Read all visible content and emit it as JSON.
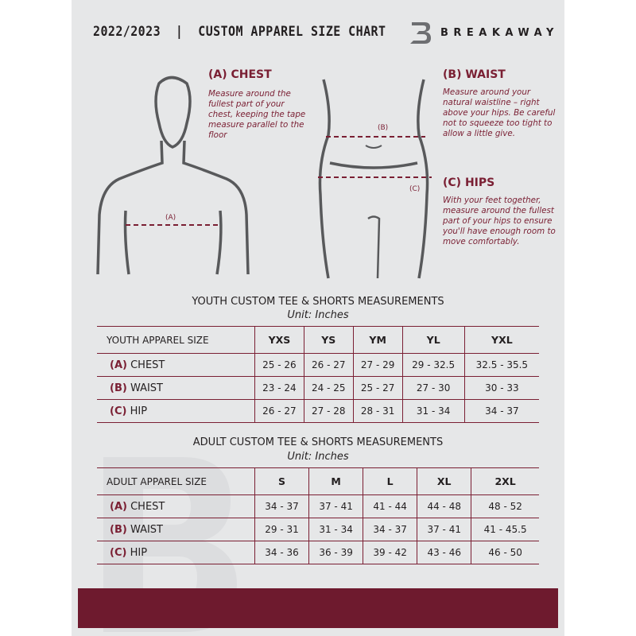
{
  "header": {
    "title": "2022/2023  |  CUSTOM APPAREL SIZE CHART",
    "brand": "BREAKAWAY",
    "logo_letter": "B"
  },
  "colors": {
    "accent": "#7a1f33",
    "background": "#e6e7e8",
    "footer": "#6e1a2e"
  },
  "diagram": {
    "chest_marker": "(A)",
    "waist_marker": "(B)",
    "hips_marker": "(C)"
  },
  "instructions": [
    {
      "heading": "(A) CHEST",
      "text": "Measure around the fullest part of your chest, keeping the tape measure parallel to the floor"
    },
    {
      "heading": "(B) WAIST",
      "text": "Measure around your natural waistline – right above your hips. Be careful not to squeeze too tight to allow a little give."
    },
    {
      "heading": "(C) HIPS",
      "text": "With your feet together, measure around the fullest part of your hips to ensure you'll have enough room to move comfortably."
    }
  ],
  "youth": {
    "title": "YOUTH CUSTOM TEE & SHORTS MEASUREMENTS",
    "unit": "Unit: Inches",
    "size_label": "YOUTH APPAREL SIZE",
    "sizes": [
      "YXS",
      "YS",
      "YM",
      "YL",
      "YXL"
    ],
    "rows": [
      {
        "code": "(A)",
        "name": "CHEST",
        "values": [
          "25 - 26",
          "26 - 27",
          "27 - 29",
          "29 - 32.5",
          "32.5 - 35.5"
        ]
      },
      {
        "code": "(B)",
        "name": "WAIST",
        "values": [
          "23 - 24",
          "24 - 25",
          "25 - 27",
          "27 - 30",
          "30 - 33"
        ]
      },
      {
        "code": "(C)",
        "name": "HIP",
        "values": [
          "26 - 27",
          "27 - 28",
          "28 - 31",
          "31 - 34",
          "34 - 37"
        ]
      }
    ]
  },
  "adult": {
    "title": "ADULT CUSTOM TEE & SHORTS MEASUREMENTS",
    "unit": "Unit: Inches",
    "size_label": "ADULT APPAREL SIZE",
    "sizes": [
      "S",
      "M",
      "L",
      "XL",
      "2XL"
    ],
    "rows": [
      {
        "code": "(A)",
        "name": "CHEST",
        "values": [
          "34 - 37",
          "37 - 41",
          "41 - 44",
          "44 - 48",
          "48 - 52"
        ]
      },
      {
        "code": "(B)",
        "name": "WAIST",
        "values": [
          "29 - 31",
          "31 - 34",
          "34 - 37",
          "37 - 41",
          "41 - 45.5"
        ]
      },
      {
        "code": "(C)",
        "name": "HIP",
        "values": [
          "34 - 36",
          "36 - 39",
          "39 - 42",
          "43 - 46",
          "46 - 50"
        ]
      }
    ]
  }
}
